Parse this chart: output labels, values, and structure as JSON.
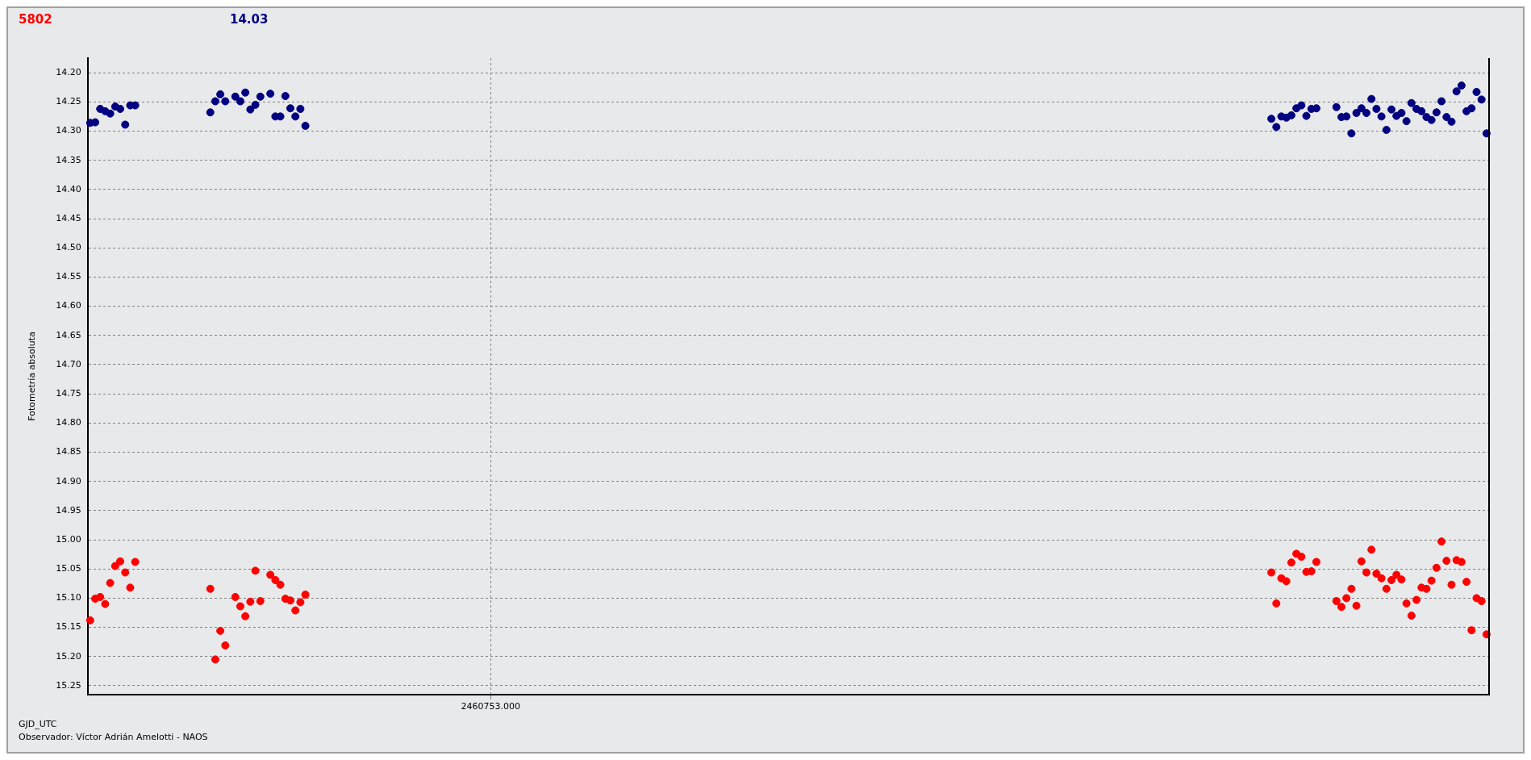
{
  "chart_data": {
    "type": "scatter",
    "ylabel": "Fotometría absoluta",
    "xlabel": "GJD_UTC",
    "annotations": [
      "Observador: Víctor Adrián Amelotti - NAOS"
    ],
    "categories": [
      null,
      null,
      null,
      null,
      null,
      null,
      null,
      null,
      null,
      null,
      null,
      null,
      null,
      null,
      null,
      null,
      null,
      null,
      null,
      null,
      null,
      null,
      null,
      null,
      null,
      null,
      null,
      null,
      null,
      null,
      null,
      null,
      null,
      null,
      null,
      null,
      null,
      null,
      null,
      null,
      null,
      null,
      null,
      null,
      null,
      null,
      null,
      null,
      null,
      null,
      null,
      null,
      null,
      null,
      null,
      null,
      null,
      null,
      null,
      null,
      null,
      null,
      null,
      null,
      null,
      null,
      null,
      null,
      null,
      null,
      null,
      null,
      null,
      null,
      null,
      null,
      null,
      null,
      null,
      null,
      "2460753.000",
      null,
      null,
      null,
      null,
      null,
      null,
      null,
      null,
      null,
      null,
      null,
      null,
      null,
      null,
      null,
      null,
      null,
      null,
      null,
      null,
      null,
      null,
      null,
      null,
      null,
      null,
      null,
      null,
      null,
      null,
      null,
      null,
      null,
      null,
      null,
      null,
      null,
      null,
      null,
      null,
      null,
      null,
      null,
      null,
      null,
      null,
      null,
      null,
      null,
      null,
      null,
      null,
      null,
      null,
      null,
      null,
      null,
      null,
      null,
      null,
      null,
      null,
      null,
      null,
      null,
      null,
      null,
      null,
      null,
      null,
      null,
      null,
      null,
      null,
      null,
      null,
      null,
      null,
      null,
      null,
      null,
      null,
      null,
      null,
      null,
      null,
      null,
      null,
      null,
      null,
      null,
      null,
      null,
      null,
      null,
      null,
      null,
      null,
      null,
      null,
      null,
      null,
      null,
      null,
      null,
      null,
      null,
      null,
      null,
      null,
      null,
      null,
      null,
      null,
      null,
      null,
      null,
      null,
      null,
      null,
      null,
      null,
      null,
      null,
      null,
      null,
      null,
      null,
      null,
      null,
      null,
      null,
      null,
      null,
      null,
      null,
      null,
      null,
      null,
      null,
      null,
      null,
      null,
      null,
      null,
      null,
      null,
      null,
      null,
      null,
      null,
      null,
      null,
      null,
      null,
      null,
      null,
      null,
      null,
      null,
      null,
      null,
      null,
      null,
      null,
      null,
      null,
      null,
      null,
      null,
      null,
      null,
      null,
      null,
      null,
      null,
      null,
      null,
      null,
      null,
      null,
      null,
      null,
      null,
      null,
      null,
      null,
      null,
      null,
      null,
      null,
      null,
      null,
      null,
      null,
      null,
      null,
      null,
      null
    ],
    "series": [
      {
        "name": "5802",
        "color": "#ff0000",
        "values": [
          15.138,
          15.101,
          15.098,
          15.11,
          15.074,
          15.045,
          15.037,
          15.056,
          15.082,
          15.038,
          null,
          null,
          null,
          null,
          null,
          null,
          null,
          null,
          null,
          null,
          null,
          null,
          null,
          null,
          15.084,
          15.205,
          15.156,
          15.181,
          null,
          15.098,
          15.114,
          15.131,
          15.106,
          15.053,
          15.105,
          null,
          15.06,
          15.069,
          15.077,
          15.101,
          15.104,
          15.121,
          15.107,
          15.094,
          null,
          null,
          null,
          null,
          null,
          null,
          null,
          null,
          null,
          null,
          null,
          null,
          null,
          null,
          null,
          null,
          null,
          null,
          null,
          null,
          null,
          null,
          null,
          null,
          null,
          null,
          null,
          null,
          null,
          null,
          null,
          null,
          null,
          null,
          null,
          null,
          null,
          null,
          null,
          null,
          null,
          null,
          null,
          null,
          null,
          null,
          null,
          null,
          null,
          null,
          null,
          null,
          null,
          null,
          null,
          null,
          null,
          null,
          null,
          null,
          null,
          null,
          null,
          null,
          null,
          null,
          null,
          null,
          null,
          null,
          null,
          null,
          null,
          null,
          null,
          null,
          null,
          null,
          null,
          null,
          null,
          null,
          null,
          null,
          null,
          null,
          null,
          null,
          null,
          null,
          null,
          null,
          null,
          null,
          null,
          null,
          null,
          null,
          null,
          null,
          null,
          null,
          null,
          null,
          null,
          null,
          null,
          null,
          null,
          null,
          null,
          null,
          null,
          null,
          null,
          null,
          null,
          null,
          null,
          null,
          null,
          null,
          null,
          null,
          null,
          null,
          null,
          null,
          null,
          null,
          null,
          null,
          null,
          null,
          null,
          null,
          null,
          null,
          null,
          null,
          null,
          null,
          null,
          null,
          null,
          null,
          null,
          null,
          null,
          null,
          null,
          null,
          null,
          null,
          null,
          null,
          null,
          null,
          null,
          null,
          null,
          null,
          null,
          null,
          null,
          null,
          null,
          null,
          null,
          null,
          null,
          null,
          null,
          null,
          null,
          null,
          null,
          null,
          null,
          null,
          null,
          null,
          null,
          null,
          null,
          null,
          null,
          null,
          null,
          null,
          null,
          null,
          15.056,
          15.109,
          15.066,
          15.071,
          15.039,
          15.024,
          15.029,
          15.055,
          15.054,
          15.038,
          null,
          null,
          null,
          15.105,
          15.115,
          15.1,
          15.084,
          15.113,
          15.037,
          15.056,
          15.017,
          15.058,
          15.066,
          15.084,
          15.069,
          15.06,
          15.068,
          15.109,
          15.13,
          15.103,
          15.082,
          15.084,
          15.07,
          15.048,
          15.003,
          15.036,
          15.077,
          15.035,
          15.038,
          15.072,
          15.155,
          15.1,
          15.105,
          15.162
        ]
      },
      {
        "name": "14.03",
        "color": "#000080",
        "values": [
          14.286,
          14.285,
          14.262,
          14.266,
          14.27,
          14.258,
          14.262,
          14.289,
          14.256,
          14.256,
          null,
          null,
          null,
          null,
          null,
          null,
          null,
          null,
          null,
          null,
          null,
          null,
          null,
          null,
          14.268,
          14.249,
          14.237,
          14.249,
          null,
          14.241,
          14.249,
          14.234,
          14.263,
          14.255,
          14.241,
          null,
          14.236,
          14.275,
          14.275,
          14.24,
          14.261,
          14.275,
          14.262,
          14.291,
          null,
          null,
          null,
          null,
          null,
          null,
          null,
          null,
          null,
          null,
          null,
          null,
          null,
          null,
          null,
          null,
          null,
          null,
          null,
          null,
          null,
          null,
          null,
          null,
          null,
          null,
          null,
          null,
          null,
          null,
          null,
          null,
          null,
          null,
          null,
          null,
          null,
          null,
          null,
          null,
          null,
          null,
          null,
          null,
          null,
          null,
          null,
          null,
          null,
          null,
          null,
          null,
          null,
          null,
          null,
          null,
          null,
          null,
          null,
          null,
          null,
          null,
          null,
          null,
          null,
          null,
          null,
          null,
          null,
          null,
          null,
          null,
          null,
          null,
          null,
          null,
          null,
          null,
          null,
          null,
          null,
          null,
          null,
          null,
          null,
          null,
          null,
          null,
          null,
          null,
          null,
          null,
          null,
          null,
          null,
          null,
          null,
          null,
          null,
          null,
          null,
          null,
          null,
          null,
          null,
          null,
          null,
          null,
          null,
          null,
          null,
          null,
          null,
          null,
          null,
          null,
          null,
          null,
          null,
          null,
          null,
          null,
          null,
          null,
          null,
          null,
          null,
          null,
          null,
          null,
          null,
          null,
          null,
          null,
          null,
          null,
          null,
          null,
          null,
          null,
          null,
          null,
          null,
          null,
          null,
          null,
          null,
          null,
          null,
          null,
          null,
          null,
          null,
          null,
          null,
          null,
          null,
          null,
          null,
          null,
          null,
          null,
          null,
          null,
          null,
          null,
          null,
          null,
          null,
          null,
          null,
          null,
          null,
          null,
          null,
          null,
          null,
          null,
          null,
          null,
          null,
          null,
          null,
          null,
          null,
          null,
          null,
          null,
          null,
          null,
          null,
          null,
          14.279,
          14.293,
          14.275,
          14.277,
          14.273,
          14.261,
          14.256,
          14.274,
          14.262,
          14.261,
          null,
          null,
          null,
          14.259,
          14.276,
          14.275,
          14.304,
          14.269,
          14.261,
          14.269,
          14.245,
          14.262,
          14.275,
          14.298,
          14.263,
          14.274,
          14.269,
          14.283,
          14.252,
          14.262,
          14.266,
          14.276,
          14.281,
          14.268,
          14.249,
          14.276,
          14.284,
          14.232,
          14.222,
          14.266,
          14.261,
          14.233,
          14.246,
          14.304
        ]
      }
    ],
    "ylim": [
      15.265,
      14.175
    ],
    "yticks": [
      {
        "value": 14.2,
        "label": "14.20"
      },
      {
        "value": 14.25,
        "label": "14.25"
      },
      {
        "value": 14.3,
        "label": "14.30"
      },
      {
        "value": 14.35,
        "label": "14.35"
      },
      {
        "value": 14.4,
        "label": "14.40"
      },
      {
        "value": 14.45,
        "label": "14.45"
      },
      {
        "value": 14.5,
        "label": "14.50"
      },
      {
        "value": 14.55,
        "label": "14.55"
      },
      {
        "value": 14.6,
        "label": "14.60"
      },
      {
        "value": 14.65,
        "label": "14.65"
      },
      {
        "value": 14.7,
        "label": "14.70"
      },
      {
        "value": 14.75,
        "label": "14.75"
      },
      {
        "value": 14.8,
        "label": "14.80"
      },
      {
        "value": 14.85,
        "label": "14.85"
      },
      {
        "value": 14.9,
        "label": "14.90"
      },
      {
        "value": 14.95,
        "label": "14.95"
      },
      {
        "value": 15.0,
        "label": "15.00"
      },
      {
        "value": 15.05,
        "label": "15.05"
      },
      {
        "value": 15.1,
        "label": "15.10"
      },
      {
        "value": 15.15,
        "label": "15.15"
      },
      {
        "value": 15.2,
        "label": "15.20"
      },
      {
        "value": 15.25,
        "label": "15.25"
      }
    ],
    "grid": true,
    "legend": "top left",
    "marker": "circle"
  }
}
